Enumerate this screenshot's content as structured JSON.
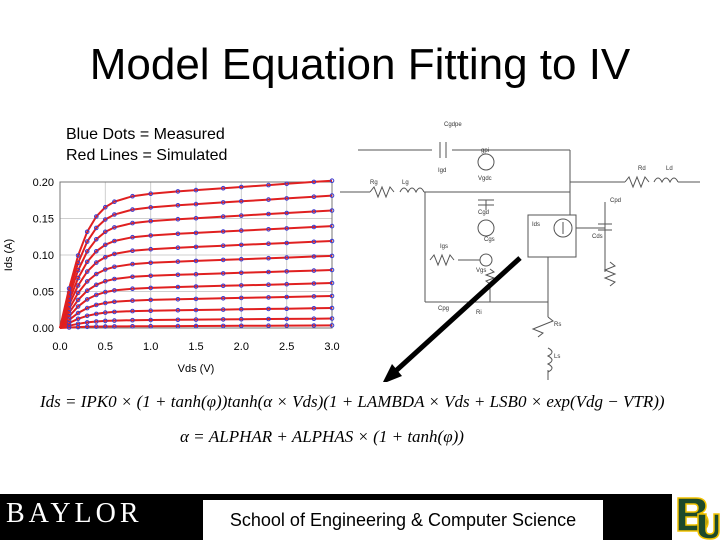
{
  "slide": {
    "title": "Model Equation Fitting to IV",
    "legend_line1": "Blue Dots = Measured",
    "legend_line2": "Red Lines = Simulated",
    "equation_1": "Ids = IPK0 × (1 + tanh(φ))tanh(α × Vds)(1 + LAMBDA × Vds + LSB0 × exp(Vdg − VTR))",
    "equation_2": "α = ALPHAR + ALPHAS × (1 + tanh(φ))",
    "footer_logo": "BAYLOR",
    "footer_caption": "School of Engineering & Computer Science"
  },
  "colors": {
    "simulated": "#e02020",
    "measured": "#3a3ad0",
    "footer": "#000000",
    "baylor_green": "#1e4a2b",
    "baylor_gold": "#f2c200"
  },
  "chart_data": {
    "type": "line",
    "xlabel": "Vds (V)",
    "ylabel": "Ids (A)",
    "xlim": [
      0,
      3.0
    ],
    "ylim": [
      0,
      0.2
    ],
    "x_ticks": [
      "0.0",
      "0.5",
      "1.0",
      "1.5",
      "2.0",
      "2.5",
      "3.0"
    ],
    "y_ticks": [
      "0.00",
      "0.05",
      "0.10",
      "0.15",
      "0.20"
    ],
    "grid": true,
    "series_x": [
      0,
      0.1,
      0.2,
      0.3,
      0.4,
      0.5,
      0.6,
      0.8,
      1.0,
      1.3,
      1.5,
      1.8,
      2.0,
      2.3,
      2.5,
      2.8,
      3.0
    ],
    "curves": [
      {
        "sat": 0.002,
        "slope": 0.0005
      },
      {
        "sat": 0.01,
        "slope": 0.001
      },
      {
        "sat": 0.022,
        "slope": 0.0018
      },
      {
        "sat": 0.036,
        "slope": 0.0026
      },
      {
        "sat": 0.052,
        "slope": 0.0032
      },
      {
        "sat": 0.068,
        "slope": 0.0038
      },
      {
        "sat": 0.085,
        "slope": 0.0046
      },
      {
        "sat": 0.103,
        "slope": 0.0054
      },
      {
        "sat": 0.121,
        "slope": 0.0062
      },
      {
        "sat": 0.14,
        "slope": 0.007
      },
      {
        "sat": 0.158,
        "slope": 0.0078
      },
      {
        "sat": 0.176,
        "slope": 0.0086
      }
    ]
  },
  "circuit": {
    "labels": [
      "Cgdpe",
      "gpi",
      "Vgdc",
      "Cgd",
      "Rg",
      "Lg",
      "Igd",
      "Cgs",
      "Igs",
      "Vgs",
      "Ri",
      "Ids",
      "Cds",
      "Rd",
      "Ld",
      "Rs",
      "Ls",
      "Cpg",
      "Cpd"
    ]
  }
}
